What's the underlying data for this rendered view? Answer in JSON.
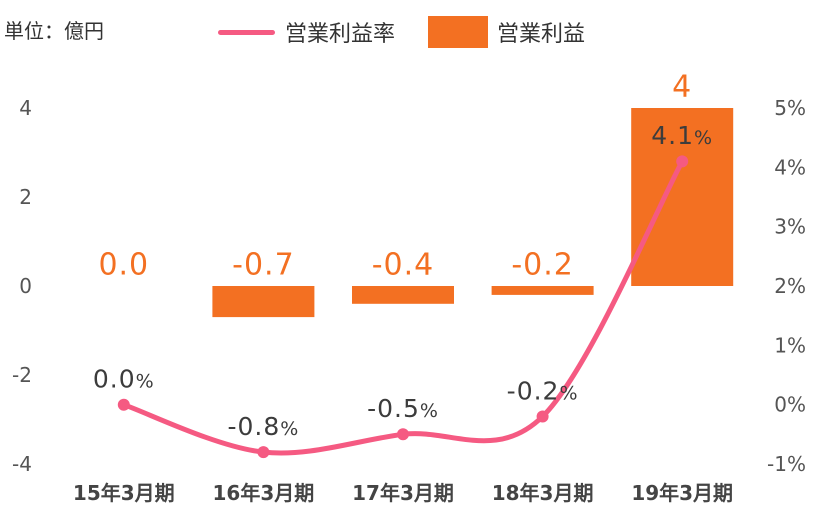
{
  "chart_data": {
    "type": "bar",
    "unit_label": "単位：億円",
    "categories": [
      "15年3月期",
      "16年3月期",
      "17年3月期",
      "18年3月期",
      "19年3月期"
    ],
    "series": [
      {
        "name": "営業利益率",
        "type": "line",
        "axis": "right",
        "color": "#f55a82",
        "label_color": "#3c3c3c",
        "values": [
          0.0,
          -0.8,
          -0.5,
          -0.2,
          4.1
        ],
        "labels": [
          "0.0%",
          "-0.8%",
          "-0.5%",
          "-0.2%",
          "4.1%"
        ]
      },
      {
        "name": "営業利益",
        "type": "bar",
        "axis": "left",
        "color": "#f37022",
        "label_color": "#f37022",
        "values": [
          0.0,
          -0.7,
          -0.4,
          -0.2,
          4
        ],
        "labels": [
          "0.0",
          "-0.7",
          "-0.4",
          "-0.2",
          "4"
        ]
      }
    ],
    "y_left": {
      "ylim": [
        -4,
        4
      ],
      "ticks": [
        "4",
        "2",
        "0",
        "-2",
        "-4"
      ]
    },
    "y_right": {
      "ylim": [
        -1,
        5
      ],
      "ticks": [
        "5%",
        "4%",
        "3%",
        "2%",
        "1%",
        "0%",
        "-1%"
      ]
    },
    "grid": false,
    "legend_position": "top"
  }
}
